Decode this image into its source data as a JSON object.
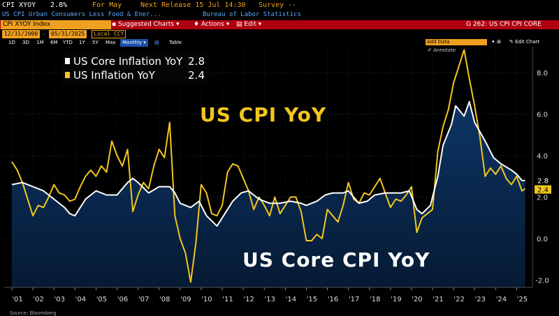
{
  "header": {
    "ticker": "CPI XYOY",
    "value": "2.8%",
    "period": "For May",
    "next_release": "Next Release 15 Jul 14:30",
    "survey": "Survey --",
    "description": "US CPI Urban Consumers Less Food & Ener...",
    "source_org": "Bureau of Labor Statistics"
  },
  "menubar": {
    "index": "CPI XYOY Index",
    "suggested": "Suggested Charts",
    "actions": "Actions",
    "edit": "Edit",
    "chart_id": "G 262: US CPI CPI CORE"
  },
  "datebar": {
    "start_date": "12/31/2000",
    "end_date": "05/31/2025",
    "currency": "Local CCY"
  },
  "rangebar": {
    "items": [
      "1D",
      "3D",
      "1M",
      "6M",
      "YTD",
      "1Y",
      "5Y",
      "Max"
    ],
    "frequency": "Monthly",
    "table": "Table"
  },
  "tools": {
    "add_data": "Add Data",
    "annotate": "Annotate",
    "edit_chart": "Edit Chart"
  },
  "legend": [
    {
      "label": "US Core Inflation YoY",
      "value": "2.8",
      "color": "#ffffff"
    },
    {
      "label": "US Inflation YoY",
      "value": "2.4",
      "color": "#f2c61f"
    }
  ],
  "annotations": {
    "cpi": "US CPI YoY",
    "core": "US Core CPI YoY"
  },
  "last_values": {
    "core": "2.8",
    "cpi": "2.4"
  },
  "source": "Source: Bloomberg",
  "colors": {
    "cpi": "#f2c61f",
    "core": "#ffffff",
    "fill_top": "#0d3566",
    "fill_bottom": "#061a33",
    "menubar": "#b00010",
    "amber": "#f0a020"
  },
  "chart_data": {
    "type": "line",
    "ylim": [
      -2.5,
      9.5
    ],
    "yticks": [
      "8.0",
      "6.0",
      "4.0",
      "2.0",
      "0.0",
      "-2.0"
    ],
    "xticks": [
      "'01",
      "'02",
      "'03",
      "'04",
      "'05",
      "'06",
      "'07",
      "'08",
      "'09",
      "'10",
      "'11",
      "'12",
      "'13",
      "'14",
      "'15",
      "'16",
      "'17",
      "'18",
      "'19",
      "'20",
      "'21",
      "'22",
      "'23",
      "'24",
      "'25"
    ],
    "series": [
      {
        "name": "US Inflation YoY",
        "points": [
          [
            2001.0,
            3.7
          ],
          [
            2001.25,
            3.3
          ],
          [
            2001.5,
            2.7
          ],
          [
            2001.75,
            1.9
          ],
          [
            2002.0,
            1.1
          ],
          [
            2002.25,
            1.6
          ],
          [
            2002.5,
            1.5
          ],
          [
            2002.75,
            2.0
          ],
          [
            2003.0,
            2.6
          ],
          [
            2003.25,
            2.2
          ],
          [
            2003.5,
            2.1
          ],
          [
            2003.75,
            1.8
          ],
          [
            2004.0,
            1.9
          ],
          [
            2004.25,
            2.5
          ],
          [
            2004.5,
            3.0
          ],
          [
            2004.75,
            3.3
          ],
          [
            2005.0,
            3.0
          ],
          [
            2005.25,
            3.5
          ],
          [
            2005.5,
            3.2
          ],
          [
            2005.75,
            4.7
          ],
          [
            2006.0,
            4.0
          ],
          [
            2006.25,
            3.5
          ],
          [
            2006.5,
            4.3
          ],
          [
            2006.75,
            1.3
          ],
          [
            2007.0,
            2.1
          ],
          [
            2007.25,
            2.7
          ],
          [
            2007.5,
            2.4
          ],
          [
            2007.75,
            3.5
          ],
          [
            2008.0,
            4.3
          ],
          [
            2008.25,
            3.9
          ],
          [
            2008.5,
            5.6
          ],
          [
            2008.75,
            1.1
          ],
          [
            2009.0,
            0.0
          ],
          [
            2009.25,
            -0.7
          ],
          [
            2009.5,
            -2.1
          ],
          [
            2009.75,
            -0.2
          ],
          [
            2010.0,
            2.6
          ],
          [
            2010.25,
            2.2
          ],
          [
            2010.5,
            1.2
          ],
          [
            2010.75,
            1.1
          ],
          [
            2011.0,
            1.6
          ],
          [
            2011.25,
            3.2
          ],
          [
            2011.5,
            3.6
          ],
          [
            2011.75,
            3.5
          ],
          [
            2012.0,
            2.9
          ],
          [
            2012.25,
            2.3
          ],
          [
            2012.5,
            1.4
          ],
          [
            2012.75,
            2.0
          ],
          [
            2013.0,
            1.6
          ],
          [
            2013.25,
            1.1
          ],
          [
            2013.5,
            2.0
          ],
          [
            2013.75,
            1.2
          ],
          [
            2014.0,
            1.6
          ],
          [
            2014.25,
            2.0
          ],
          [
            2014.5,
            2.0
          ],
          [
            2014.75,
            1.3
          ],
          [
            2015.0,
            -0.1
          ],
          [
            2015.25,
            -0.1
          ],
          [
            2015.5,
            0.2
          ],
          [
            2015.75,
            0.0
          ],
          [
            2016.0,
            1.4
          ],
          [
            2016.25,
            1.1
          ],
          [
            2016.5,
            0.8
          ],
          [
            2016.75,
            1.6
          ],
          [
            2017.0,
            2.7
          ],
          [
            2017.25,
            1.9
          ],
          [
            2017.5,
            1.7
          ],
          [
            2017.75,
            2.2
          ],
          [
            2018.0,
            2.1
          ],
          [
            2018.25,
            2.5
          ],
          [
            2018.5,
            2.9
          ],
          [
            2018.75,
            2.2
          ],
          [
            2019.0,
            1.5
          ],
          [
            2019.25,
            1.9
          ],
          [
            2019.5,
            1.8
          ],
          [
            2019.75,
            2.1
          ],
          [
            2020.0,
            2.5
          ],
          [
            2020.25,
            0.3
          ],
          [
            2020.5,
            1.0
          ],
          [
            2020.75,
            1.2
          ],
          [
            2021.0,
            1.4
          ],
          [
            2021.25,
            4.2
          ],
          [
            2021.5,
            5.4
          ],
          [
            2021.75,
            6.2
          ],
          [
            2022.0,
            7.5
          ],
          [
            2022.25,
            8.3
          ],
          [
            2022.5,
            9.1
          ],
          [
            2022.75,
            7.7
          ],
          [
            2023.0,
            6.4
          ],
          [
            2023.25,
            4.9
          ],
          [
            2023.5,
            3.0
          ],
          [
            2023.75,
            3.4
          ],
          [
            2024.0,
            3.1
          ],
          [
            2024.25,
            3.5
          ],
          [
            2024.5,
            2.9
          ],
          [
            2024.75,
            2.6
          ],
          [
            2025.0,
            3.0
          ],
          [
            2025.25,
            2.3
          ],
          [
            2025.4,
            2.4
          ]
        ]
      },
      {
        "name": "US Core Inflation YoY",
        "points": [
          [
            2001.0,
            2.6
          ],
          [
            2001.5,
            2.7
          ],
          [
            2002.0,
            2.5
          ],
          [
            2002.5,
            2.3
          ],
          [
            2003.0,
            1.9
          ],
          [
            2003.5,
            1.5
          ],
          [
            2003.75,
            1.2
          ],
          [
            2004.0,
            1.1
          ],
          [
            2004.5,
            1.9
          ],
          [
            2005.0,
            2.3
          ],
          [
            2005.5,
            2.1
          ],
          [
            2006.0,
            2.1
          ],
          [
            2006.5,
            2.7
          ],
          [
            2006.75,
            2.9
          ],
          [
            2007.0,
            2.7
          ],
          [
            2007.5,
            2.2
          ],
          [
            2008.0,
            2.5
          ],
          [
            2008.5,
            2.5
          ],
          [
            2008.75,
            2.2
          ],
          [
            2009.0,
            1.7
          ],
          [
            2009.5,
            1.5
          ],
          [
            2009.9,
            1.8
          ],
          [
            2010.25,
            1.1
          ],
          [
            2010.75,
            0.6
          ],
          [
            2011.0,
            1.0
          ],
          [
            2011.5,
            1.8
          ],
          [
            2011.9,
            2.2
          ],
          [
            2012.25,
            2.3
          ],
          [
            2012.75,
            1.9
          ],
          [
            2013.25,
            1.7
          ],
          [
            2013.75,
            1.7
          ],
          [
            2014.25,
            1.8
          ],
          [
            2014.75,
            1.7
          ],
          [
            2015.0,
            1.6
          ],
          [
            2015.5,
            1.8
          ],
          [
            2015.9,
            2.1
          ],
          [
            2016.25,
            2.2
          ],
          [
            2016.75,
            2.2
          ],
          [
            2017.0,
            2.3
          ],
          [
            2017.5,
            1.7
          ],
          [
            2017.9,
            1.8
          ],
          [
            2018.25,
            2.1
          ],
          [
            2018.75,
            2.2
          ],
          [
            2019.0,
            2.2
          ],
          [
            2019.5,
            2.2
          ],
          [
            2019.9,
            2.3
          ],
          [
            2020.25,
            1.4
          ],
          [
            2020.5,
            1.2
          ],
          [
            2020.9,
            1.6
          ],
          [
            2021.25,
            3.0
          ],
          [
            2021.5,
            4.5
          ],
          [
            2021.9,
            5.5
          ],
          [
            2022.1,
            6.4
          ],
          [
            2022.5,
            5.9
          ],
          [
            2022.75,
            6.6
          ],
          [
            2023.0,
            5.6
          ],
          [
            2023.5,
            4.7
          ],
          [
            2023.9,
            3.9
          ],
          [
            2024.25,
            3.6
          ],
          [
            2024.75,
            3.3
          ],
          [
            2025.0,
            3.1
          ],
          [
            2025.25,
            2.8
          ],
          [
            2025.4,
            2.8
          ]
        ]
      }
    ]
  }
}
